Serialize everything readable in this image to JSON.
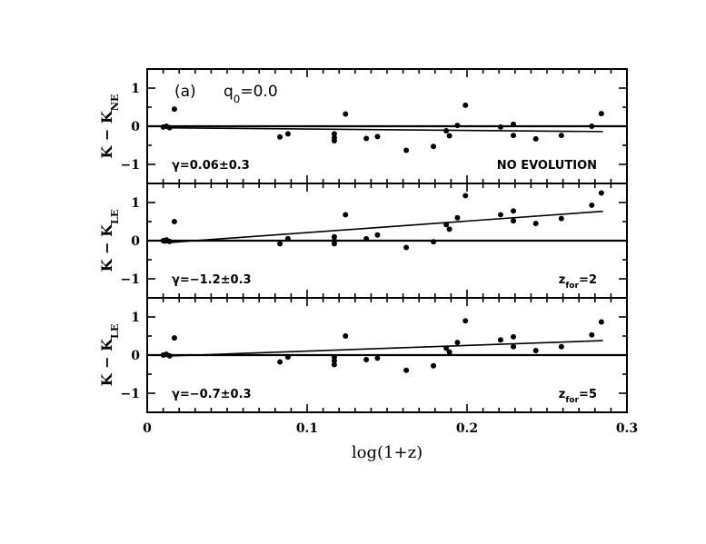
{
  "chart_data": {
    "type": "scatter",
    "panel_label": "(a)",
    "title_main": "q",
    "title_sub": "0",
    "title_eq": "=0.0",
    "xlabel": "log(1+z)",
    "xlim": [
      0,
      0.3
    ],
    "xticks": [
      {
        "value": 0,
        "label": "0"
      },
      {
        "value": 0.1,
        "label": "0.1"
      },
      {
        "value": 0.2,
        "label": "0.2"
      },
      {
        "value": 0.3,
        "label": "0.3"
      }
    ],
    "ylim": [
      -1.5,
      1.5
    ],
    "yticks": [
      {
        "value": 1,
        "label": "1"
      },
      {
        "value": 0,
        "label": "0"
      },
      {
        "value": -1,
        "label": "−1"
      }
    ],
    "panels": [
      {
        "ylabel_main": "K − K",
        "ylabel_sub": "NE",
        "gamma_text": "γ=0.06±0.3",
        "right_main": "NO EVOLUTION",
        "right_sub": "",
        "right_eq": "",
        "fit": {
          "x": [
            0.01,
            0.285
          ],
          "y": [
            -0.04,
            -0.14
          ]
        },
        "points": [
          {
            "x": 0.01,
            "y": -0.02
          },
          {
            "x": 0.012,
            "y": 0.0
          },
          {
            "x": 0.014,
            "y": -0.04
          },
          {
            "x": 0.017,
            "y": 0.45
          },
          {
            "x": 0.083,
            "y": -0.28
          },
          {
            "x": 0.088,
            "y": -0.2
          },
          {
            "x": 0.117,
            "y": -0.2
          },
          {
            "x": 0.117,
            "y": -0.3
          },
          {
            "x": 0.117,
            "y": -0.38
          },
          {
            "x": 0.124,
            "y": 0.32
          },
          {
            "x": 0.137,
            "y": -0.32
          },
          {
            "x": 0.144,
            "y": -0.27
          },
          {
            "x": 0.162,
            "y": -0.63
          },
          {
            "x": 0.179,
            "y": -0.53
          },
          {
            "x": 0.187,
            "y": -0.12
          },
          {
            "x": 0.189,
            "y": -0.25
          },
          {
            "x": 0.194,
            "y": 0.02
          },
          {
            "x": 0.199,
            "y": 0.55
          },
          {
            "x": 0.221,
            "y": -0.02
          },
          {
            "x": 0.229,
            "y": 0.05
          },
          {
            "x": 0.229,
            "y": -0.24
          },
          {
            "x": 0.243,
            "y": -0.33
          },
          {
            "x": 0.259,
            "y": -0.24
          },
          {
            "x": 0.278,
            "y": 0.0
          },
          {
            "x": 0.284,
            "y": 0.33
          }
        ]
      },
      {
        "ylabel_main": "K − K",
        "ylabel_sub": "LE",
        "gamma_text": "γ=−1.2±0.3",
        "right_main": "z",
        "right_sub": "for",
        "right_eq": "=2",
        "fit": {
          "x": [
            0.01,
            0.285
          ],
          "y": [
            -0.06,
            0.77
          ]
        },
        "points": [
          {
            "x": 0.01,
            "y": 0.0
          },
          {
            "x": 0.012,
            "y": 0.02
          },
          {
            "x": 0.014,
            "y": -0.02
          },
          {
            "x": 0.017,
            "y": 0.5
          },
          {
            "x": 0.083,
            "y": -0.08
          },
          {
            "x": 0.088,
            "y": 0.05
          },
          {
            "x": 0.117,
            "y": 0.1
          },
          {
            "x": 0.117,
            "y": 0.0
          },
          {
            "x": 0.117,
            "y": -0.08
          },
          {
            "x": 0.124,
            "y": 0.68
          },
          {
            "x": 0.137,
            "y": 0.05
          },
          {
            "x": 0.144,
            "y": 0.15
          },
          {
            "x": 0.162,
            "y": -0.18
          },
          {
            "x": 0.179,
            "y": -0.03
          },
          {
            "x": 0.187,
            "y": 0.42
          },
          {
            "x": 0.189,
            "y": 0.3
          },
          {
            "x": 0.194,
            "y": 0.6
          },
          {
            "x": 0.199,
            "y": 1.18
          },
          {
            "x": 0.221,
            "y": 0.68
          },
          {
            "x": 0.229,
            "y": 0.78
          },
          {
            "x": 0.229,
            "y": 0.52
          },
          {
            "x": 0.243,
            "y": 0.45
          },
          {
            "x": 0.259,
            "y": 0.58
          },
          {
            "x": 0.278,
            "y": 0.93
          },
          {
            "x": 0.284,
            "y": 1.25
          }
        ]
      },
      {
        "ylabel_main": "K − K",
        "ylabel_sub": "LE",
        "gamma_text": "γ=−0.7±0.3",
        "right_main": "z",
        "right_sub": "for",
        "right_eq": "=5",
        "fit": {
          "x": [
            0.01,
            0.285
          ],
          "y": [
            -0.03,
            0.38
          ]
        },
        "points": [
          {
            "x": 0.01,
            "y": 0.0
          },
          {
            "x": 0.012,
            "y": 0.02
          },
          {
            "x": 0.014,
            "y": -0.02
          },
          {
            "x": 0.017,
            "y": 0.45
          },
          {
            "x": 0.083,
            "y": -0.18
          },
          {
            "x": 0.088,
            "y": -0.05
          },
          {
            "x": 0.117,
            "y": -0.05
          },
          {
            "x": 0.117,
            "y": -0.15
          },
          {
            "x": 0.117,
            "y": -0.25
          },
          {
            "x": 0.124,
            "y": 0.5
          },
          {
            "x": 0.137,
            "y": -0.12
          },
          {
            "x": 0.144,
            "y": -0.08
          },
          {
            "x": 0.162,
            "y": -0.4
          },
          {
            "x": 0.179,
            "y": -0.28
          },
          {
            "x": 0.187,
            "y": 0.18
          },
          {
            "x": 0.189,
            "y": 0.08
          },
          {
            "x": 0.194,
            "y": 0.33
          },
          {
            "x": 0.199,
            "y": 0.9
          },
          {
            "x": 0.221,
            "y": 0.4
          },
          {
            "x": 0.229,
            "y": 0.48
          },
          {
            "x": 0.229,
            "y": 0.22
          },
          {
            "x": 0.243,
            "y": 0.12
          },
          {
            "x": 0.259,
            "y": 0.22
          },
          {
            "x": 0.278,
            "y": 0.53
          },
          {
            "x": 0.284,
            "y": 0.87
          }
        ]
      }
    ]
  }
}
